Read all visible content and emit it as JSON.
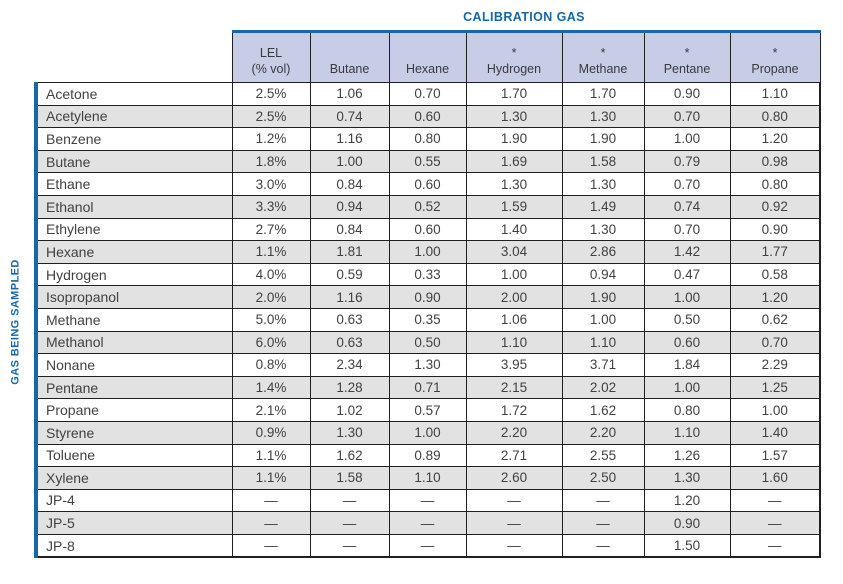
{
  "title": "CALIBRATION GAS",
  "side_label": "GAS BEING SAMPLED",
  "columns": [
    {
      "top": "LEL",
      "bottom": "(% vol)"
    },
    {
      "top": "",
      "bottom": "Butane"
    },
    {
      "top": "",
      "bottom": "Hexane"
    },
    {
      "top": "*",
      "bottom": "Hydrogen"
    },
    {
      "top": "*",
      "bottom": "Methane"
    },
    {
      "top": "*",
      "bottom": "Pentane"
    },
    {
      "top": "*",
      "bottom": "Propane"
    }
  ],
  "rows": [
    {
      "gas": "Acetone",
      "values": [
        "2.5%",
        "1.06",
        "0.70",
        "1.70",
        "1.70",
        "0.90",
        "1.10"
      ]
    },
    {
      "gas": "Acetylene",
      "values": [
        "2.5%",
        "0.74",
        "0.60",
        "1.30",
        "1.30",
        "0.70",
        "0.80"
      ]
    },
    {
      "gas": "Benzene",
      "values": [
        "1.2%",
        "1.16",
        "0.80",
        "1.90",
        "1.90",
        "1.00",
        "1.20"
      ]
    },
    {
      "gas": "Butane",
      "values": [
        "1.8%",
        "1.00",
        "0.55",
        "1.69",
        "1.58",
        "0.79",
        "0.98"
      ]
    },
    {
      "gas": "Ethane",
      "values": [
        "3.0%",
        "0.84",
        "0.60",
        "1.30",
        "1.30",
        "0.70",
        "0.80"
      ]
    },
    {
      "gas": "Ethanol",
      "values": [
        "3.3%",
        "0.94",
        "0.52",
        "1.59",
        "1.49",
        "0.74",
        "0.92"
      ]
    },
    {
      "gas": "Ethylene",
      "values": [
        "2.7%",
        "0.84",
        "0.60",
        "1.40",
        "1.30",
        "0.70",
        "0.90"
      ]
    },
    {
      "gas": "Hexane",
      "values": [
        "1.1%",
        "1.81",
        "1.00",
        "3.04",
        "2.86",
        "1.42",
        "1.77"
      ]
    },
    {
      "gas": "Hydrogen",
      "values": [
        "4.0%",
        "0.59",
        "0.33",
        "1.00",
        "0.94",
        "0.47",
        "0.58"
      ]
    },
    {
      "gas": "Isopropanol",
      "values": [
        "2.0%",
        "1.16",
        "0.90",
        "2.00",
        "1.90",
        "1.00",
        "1.20"
      ]
    },
    {
      "gas": "Methane",
      "values": [
        "5.0%",
        "0.63",
        "0.35",
        "1.06",
        "1.00",
        "0.50",
        "0.62"
      ]
    },
    {
      "gas": "Methanol",
      "values": [
        "6.0%",
        "0.63",
        "0.50",
        "1.10",
        "1.10",
        "0.60",
        "0.70"
      ]
    },
    {
      "gas": "Nonane",
      "values": [
        "0.8%",
        "2.34",
        "1.30",
        "3.95",
        "3.71",
        "1.84",
        "2.29"
      ]
    },
    {
      "gas": "Pentane",
      "values": [
        "1.4%",
        "1.28",
        "0.71",
        "2.15",
        "2.02",
        "1.00",
        "1.25"
      ]
    },
    {
      "gas": "Propane",
      "values": [
        "2.1%",
        "1.02",
        "0.57",
        "1.72",
        "1.62",
        "0.80",
        "1.00"
      ]
    },
    {
      "gas": "Styrene",
      "values": [
        "0.9%",
        "1.30",
        "1.00",
        "2.20",
        "2.20",
        "1.10",
        "1.40"
      ]
    },
    {
      "gas": "Toluene",
      "values": [
        "1.1%",
        "1.62",
        "0.89",
        "2.71",
        "2.55",
        "1.26",
        "1.57"
      ]
    },
    {
      "gas": "Xylene",
      "values": [
        "1.1%",
        "1.58",
        "1.10",
        "2.60",
        "2.50",
        "1.30",
        "1.60"
      ]
    },
    {
      "gas": "JP-4",
      "values": [
        "—",
        "—",
        "—",
        "—",
        "—",
        "1.20",
        "—"
      ]
    },
    {
      "gas": "JP-5",
      "values": [
        "—",
        "—",
        "—",
        "—",
        "—",
        "0.90",
        "—"
      ]
    },
    {
      "gas": "JP-8",
      "values": [
        "—",
        "—",
        "—",
        "—",
        "—",
        "1.50",
        "—"
      ]
    }
  ],
  "colors": {
    "accent_blue": "#1766a5",
    "header_bg": "#c7cde6",
    "row_alt_bg": "#e2e2e2",
    "border_dark": "#231f20",
    "text_dark": "#414042"
  }
}
